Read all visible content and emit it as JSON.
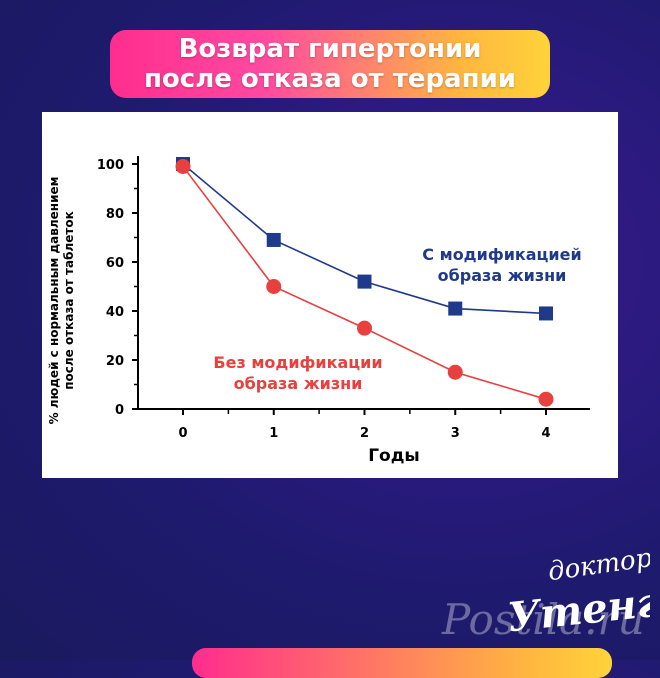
{
  "banner": {
    "title": "Возврат гипертонии\nпосле отказа от терапии"
  },
  "chart_data": {
    "type": "line",
    "xlabel": "Годы",
    "ylabel_lines": [
      "% людей с нормальным давлением",
      "после отказа от таблеток"
    ],
    "x": [
      0,
      1,
      2,
      3,
      4
    ],
    "xlim": [
      0,
      4
    ],
    "ylim": [
      0,
      100
    ],
    "yticks": [
      0,
      20,
      40,
      60,
      80,
      100
    ],
    "grid": false,
    "series": [
      {
        "name": "С модификацией образа жизни",
        "label_lines": [
          "С модификацией",
          "образа жизни"
        ],
        "values": [
          100,
          69,
          52,
          41,
          39
        ],
        "color": "#1f3a8a",
        "marker": "square"
      },
      {
        "name": "Без модификации образа жизни",
        "label_lines": [
          "Без модификации",
          "образа жизни"
        ],
        "values": [
          99,
          50,
          33,
          15,
          4
        ],
        "color": "#e8403f",
        "marker": "circle"
      }
    ]
  },
  "logo": {
    "text_line1": "доктор",
    "text_line2": "Утенг"
  },
  "watermark": {
    "text": "Postila.ru"
  }
}
